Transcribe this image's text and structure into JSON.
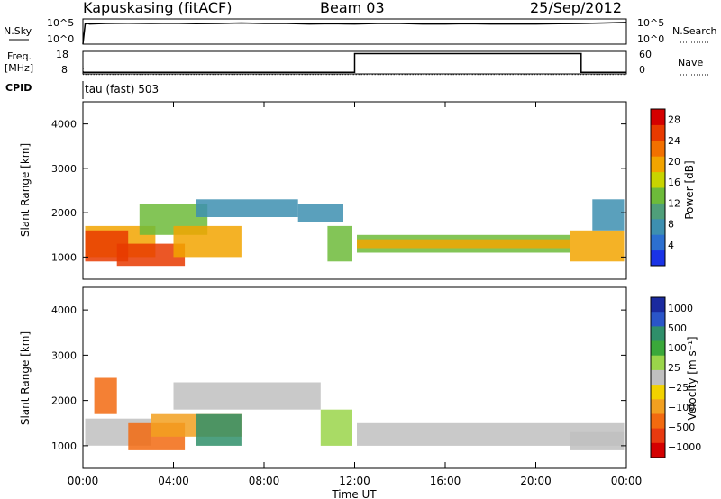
{
  "header": {
    "station": "Kapuskasing (fitACF)",
    "beam": "Beam 03",
    "date": "25/Sep/2012"
  },
  "colors": {
    "power_scale": [
      "#1a33e6",
      "#2c6fd0",
      "#3d8fb0",
      "#4f9f7a",
      "#6dbb3a",
      "#c8d400",
      "#f2a400",
      "#f27000",
      "#e83a00",
      "#d40000"
    ],
    "velocity_scale": [
      "#1a2a9f",
      "#2a55c8",
      "#2f8f6a",
      "#3aa83a",
      "#9ad54a",
      "#c0c0c0",
      "#f2d200",
      "#f2a020",
      "#f26a10",
      "#e83a10",
      "#d40000"
    ]
  },
  "chart_data": [
    {
      "type": "line",
      "name": "noise-panel",
      "ylabel_left": "N.Sky",
      "ylabel_right": "N.Search",
      "left_ticks": [
        "10^5",
        "10^0"
      ],
      "right_ticks": [
        "10^5",
        "10^0"
      ],
      "xlim": [
        0,
        24
      ],
      "series": [
        {
          "x": [
            0,
            0.1,
            0.2,
            0.3,
            1,
            2,
            3,
            4,
            5,
            6,
            7,
            8,
            9,
            10,
            11,
            12,
            13,
            14,
            15,
            16,
            17,
            18,
            19,
            20,
            21,
            22,
            23,
            24
          ],
          "y": [
            0.0,
            0.8,
            0.82,
            0.8,
            0.82,
            0.83,
            0.82,
            0.83,
            0.81,
            0.82,
            0.84,
            0.82,
            0.82,
            0.8,
            0.81,
            0.8,
            0.82,
            0.82,
            0.8,
            0.8,
            0.81,
            0.8,
            0.8,
            0.8,
            0.81,
            0.82,
            0.84,
            0.86
          ]
        }
      ]
    },
    {
      "type": "line",
      "name": "freq-panel",
      "ylabel_left": "Freq.",
      "ylabel_units": "[MHz]",
      "ylabel_right": "Nave",
      "left_ticks": [
        "18",
        "8"
      ],
      "right_ticks": [
        "60",
        "0"
      ],
      "xlim": [
        0,
        24
      ],
      "series": [
        {
          "x": [
            0,
            0.02,
            24
          ],
          "y": [
            12,
            8.1,
            8.1
          ]
        },
        {
          "x": [
            0,
            12,
            12,
            22,
            22,
            24
          ],
          "y": [
            4,
            4,
            54,
            54,
            4,
            4
          ]
        }
      ]
    },
    {
      "type": "table",
      "name": "cpid-strip",
      "label": "CPID",
      "value_text": "tau (fast) 503"
    },
    {
      "type": "heatmap",
      "name": "power-panel",
      "ylabel": "Slant Range [km]",
      "xlim": [
        0,
        24
      ],
      "ylim": [
        500,
        4500
      ],
      "yticks": [
        1000,
        2000,
        3000,
        4000
      ],
      "colorbar_label": "Power [dB]",
      "colorbar_ticks": [
        "28",
        "24",
        "20",
        "16",
        "12",
        "8",
        "4"
      ],
      "colorbar_range": [
        0,
        30
      ],
      "bands": [
        {
          "x0": 0.1,
          "x1": 3.2,
          "ylow": 1000,
          "yhigh": 1700,
          "level": 20
        },
        {
          "x0": 0.1,
          "x1": 2.0,
          "ylow": 900,
          "yhigh": 1600,
          "level": 26
        },
        {
          "x0": 1.5,
          "x1": 4.5,
          "ylow": 800,
          "yhigh": 1300,
          "level": 24
        },
        {
          "x0": 2.5,
          "x1": 5.5,
          "ylow": 1500,
          "yhigh": 2200,
          "level": 12
        },
        {
          "x0": 4.0,
          "x1": 7.0,
          "ylow": 1000,
          "yhigh": 1700,
          "level": 20
        },
        {
          "x0": 5.0,
          "x1": 9.5,
          "ylow": 1900,
          "yhigh": 2300,
          "level": 8
        },
        {
          "x0": 9.5,
          "x1": 11.5,
          "ylow": 1800,
          "yhigh": 2200,
          "level": 6
        },
        {
          "x0": 10.8,
          "x1": 11.9,
          "ylow": 900,
          "yhigh": 1700,
          "level": 14
        },
        {
          "x0": 12.1,
          "x1": 21.5,
          "ylow": 1100,
          "yhigh": 1500,
          "level": 14
        },
        {
          "x0": 12.1,
          "x1": 21.5,
          "ylow": 1200,
          "yhigh": 1400,
          "level": 18
        },
        {
          "x0": 21.5,
          "x1": 23.9,
          "ylow": 900,
          "yhigh": 1600,
          "level": 20
        },
        {
          "x0": 22.5,
          "x1": 23.9,
          "ylow": 1600,
          "yhigh": 2300,
          "level": 8
        }
      ]
    },
    {
      "type": "heatmap",
      "name": "velocity-panel",
      "ylabel": "Slant Range [km]",
      "xlabel": "Time UT",
      "xlim": [
        0,
        24
      ],
      "ylim": [
        500,
        4500
      ],
      "yticks": [
        1000,
        2000,
        3000,
        4000
      ],
      "xticks": [
        "00:00",
        "04:00",
        "08:00",
        "12:00",
        "16:00",
        "20:00",
        "00:00"
      ],
      "colorbar_label": "Velocity [m s⁻¹]",
      "colorbar_ticks": [
        "1000",
        "500",
        "100",
        "25",
        "−25",
        "−100",
        "−500",
        "−1000"
      ],
      "bands": [
        {
          "x0": 0.1,
          "x1": 3.0,
          "ylow": 1000,
          "yhigh": 1600,
          "level": 5
        },
        {
          "x0": 0.5,
          "x1": 1.5,
          "ylow": 1700,
          "yhigh": 2500,
          "level": 8
        },
        {
          "x0": 2.0,
          "x1": 4.5,
          "ylow": 900,
          "yhigh": 1500,
          "level": 8
        },
        {
          "x0": 3.0,
          "x1": 7.0,
          "ylow": 1200,
          "yhigh": 1700,
          "level": 7
        },
        {
          "x0": 5.0,
          "x1": 7.0,
          "ylow": 1000,
          "yhigh": 1700,
          "level": 2
        },
        {
          "x0": 4.0,
          "x1": 10.5,
          "ylow": 1800,
          "yhigh": 2400,
          "level": 5
        },
        {
          "x0": 10.5,
          "x1": 11.9,
          "ylow": 1000,
          "yhigh": 1800,
          "level": 4
        },
        {
          "x0": 12.1,
          "x1": 23.9,
          "ylow": 1000,
          "yhigh": 1500,
          "level": 5
        },
        {
          "x0": 21.5,
          "x1": 23.9,
          "ylow": 900,
          "yhigh": 1300,
          "level": 5
        }
      ]
    }
  ]
}
